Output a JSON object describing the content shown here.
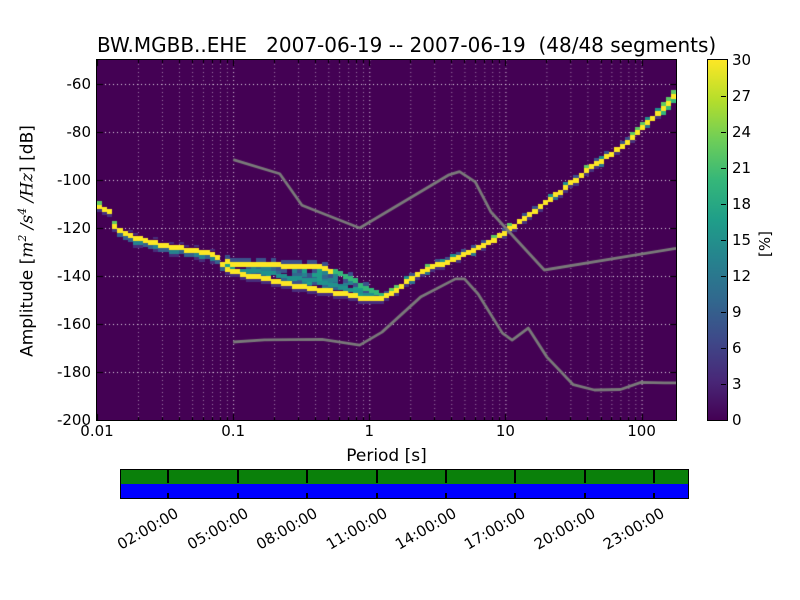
{
  "title": "BW.MGBB..EHE   2007-06-19 -- 2007-06-19  (48/48 segments)",
  "axes": {
    "xlabel": "Period [s]",
    "ylabel": {
      "pre": "Amplitude [",
      "m": "m",
      "m_exp": "2",
      "s": " /s",
      "s_exp": "4",
      "hz": " /Hz",
      "post": "] [dB]"
    },
    "x_ticks": [
      {
        "label": "0.01",
        "log": -2
      },
      {
        "label": "0.1",
        "log": -1
      },
      {
        "label": "1",
        "log": 0
      },
      {
        "label": "10",
        "log": 1
      },
      {
        "label": "100",
        "log": 2
      }
    ],
    "y_ticks": [
      -60,
      -80,
      -100,
      -120,
      -140,
      -160,
      -180,
      -200
    ],
    "xlim_log": [
      -2,
      2.2529
    ],
    "ylim": [
      -200,
      -50
    ]
  },
  "colorbar": {
    "label": "[%]",
    "min": 0,
    "max": 30,
    "ticks": [
      0,
      3,
      6,
      9,
      12,
      15,
      18,
      21,
      24,
      27,
      30
    ],
    "palette": [
      "#440154",
      "#482878",
      "#3e4989",
      "#31688e",
      "#26828e",
      "#1f9e89",
      "#35b779",
      "#6ece58",
      "#b5de2b",
      "#fde725"
    ]
  },
  "chart_data": {
    "type": "heatmap",
    "station": "BW.MGBB..EHE",
    "date_range": "2007-06-19 -- 2007-06-19",
    "segments": "48/48",
    "background": "#440154",
    "grid_color_major": "rgba(255,255,255,0.85)",
    "grid_color_minor": "rgba(255,255,255,0.5)",
    "noise_model_color": "#7a7a7a",
    "cell_colors": {
      "mode": "#fde725",
      "green": "#5ec962",
      "green2": "#35b779",
      "teal": "#21918c",
      "teal2": "#26828e",
      "blue": "#31688e",
      "blue2": "#3b528b",
      "blue3": "#34618e",
      "indigo": "#472d7b",
      "indigo2": "#46327e",
      "navy": "#3e4989"
    },
    "mode_curve": [
      [
        0.01,
        -110.0
      ],
      [
        0.0125,
        -113.0
      ],
      [
        0.0135,
        -119.0
      ],
      [
        0.016,
        -122.0
      ],
      [
        0.02,
        -124.0
      ],
      [
        0.026,
        -126.0
      ],
      [
        0.04,
        -128.3
      ],
      [
        0.06,
        -129.8
      ],
      [
        0.075,
        -131.0
      ],
      [
        0.085,
        -136.0
      ],
      [
        0.1,
        -138.0
      ],
      [
        0.14,
        -140.0
      ],
      [
        0.2,
        -141.8
      ],
      [
        0.28,
        -143.5
      ],
      [
        0.4,
        -145.3
      ],
      [
        0.55,
        -146.5
      ],
      [
        0.75,
        -148.0
      ],
      [
        1.0,
        -149.0
      ],
      [
        1.3,
        -148.5
      ],
      [
        1.6,
        -145.5
      ],
      [
        2.0,
        -141.0
      ],
      [
        2.6,
        -137.5
      ],
      [
        3.5,
        -134.5
      ],
      [
        4.5,
        -132.0
      ],
      [
        6.0,
        -128.5
      ],
      [
        8.0,
        -125.0
      ],
      [
        10.5,
        -120.5
      ],
      [
        14.0,
        -115.5
      ],
      [
        19.0,
        -110.0
      ],
      [
        25.0,
        -105.0
      ],
      [
        33.0,
        -99.5
      ],
      [
        45.0,
        -93.5
      ],
      [
        60.0,
        -89.0
      ],
      [
        80.0,
        -84.0
      ],
      [
        105.0,
        -77.5
      ],
      [
        140.0,
        -71.0
      ],
      [
        165.0,
        -66.0
      ],
      [
        179.0,
        -64.0
      ]
    ],
    "upper_branch": [
      [
        0.085,
        -133.3
      ],
      [
        0.11,
        -133.8
      ],
      [
        0.15,
        -134.2
      ],
      [
        0.22,
        -134.5
      ],
      [
        0.32,
        -134.8
      ],
      [
        0.45,
        -135.5
      ],
      [
        0.6,
        -138.0
      ],
      [
        0.8,
        -141.5
      ],
      [
        1.0,
        -144.5
      ],
      [
        1.2,
        -147.0
      ],
      [
        1.4,
        -148.5
      ]
    ],
    "mid_branch": [
      [
        0.09,
        -135.8
      ],
      [
        0.13,
        -136.8
      ],
      [
        0.2,
        -138.5
      ],
      [
        0.3,
        -140.3
      ],
      [
        0.45,
        -142.0
      ],
      [
        0.65,
        -144.0
      ],
      [
        0.9,
        -146.5
      ],
      [
        1.15,
        -148.0
      ]
    ],
    "spread_region": [
      0.088,
      1.45
    ],
    "nhnm": [
      [
        0.1,
        -91.5
      ],
      [
        0.22,
        -97.4
      ],
      [
        0.32,
        -110.5
      ],
      [
        0.85,
        -120.0
      ],
      [
        3.8,
        -98.0
      ],
      [
        4.6,
        -96.5
      ],
      [
        6.0,
        -100.8
      ],
      [
        7.8,
        -113.2
      ],
      [
        19.3,
        -137.5
      ],
      [
        179.0,
        -128.5
      ]
    ],
    "nlnm": [
      [
        0.1,
        -167.5
      ],
      [
        0.17,
        -166.6
      ],
      [
        0.45,
        -166.4
      ],
      [
        0.85,
        -168.8
      ],
      [
        1.24,
        -163.4
      ],
      [
        2.4,
        -148.6
      ],
      [
        4.3,
        -141.2
      ],
      [
        5.0,
        -141.2
      ],
      [
        6.3,
        -147.5
      ],
      [
        9.5,
        -163.8
      ],
      [
        11.2,
        -166.7
      ],
      [
        14.7,
        -161.7
      ],
      [
        20.2,
        -173.8
      ],
      [
        31.5,
        -185.3
      ],
      [
        45.0,
        -187.5
      ],
      [
        70.0,
        -187.3
      ],
      [
        99.0,
        -184.3
      ],
      [
        148.0,
        -184.5
      ],
      [
        179.0,
        -184.5
      ]
    ]
  },
  "availability": {
    "green": "#0a800a",
    "blue": "#0000ff",
    "hours_span": 24.5,
    "tick_hours": [
      2,
      5,
      8,
      11,
      14,
      17,
      20,
      23
    ],
    "time_labels": [
      "02:00:00",
      "05:00:00",
      "08:00:00",
      "11:00:00",
      "14:00:00",
      "17:00:00",
      "20:00:00",
      "23:00:00"
    ]
  }
}
